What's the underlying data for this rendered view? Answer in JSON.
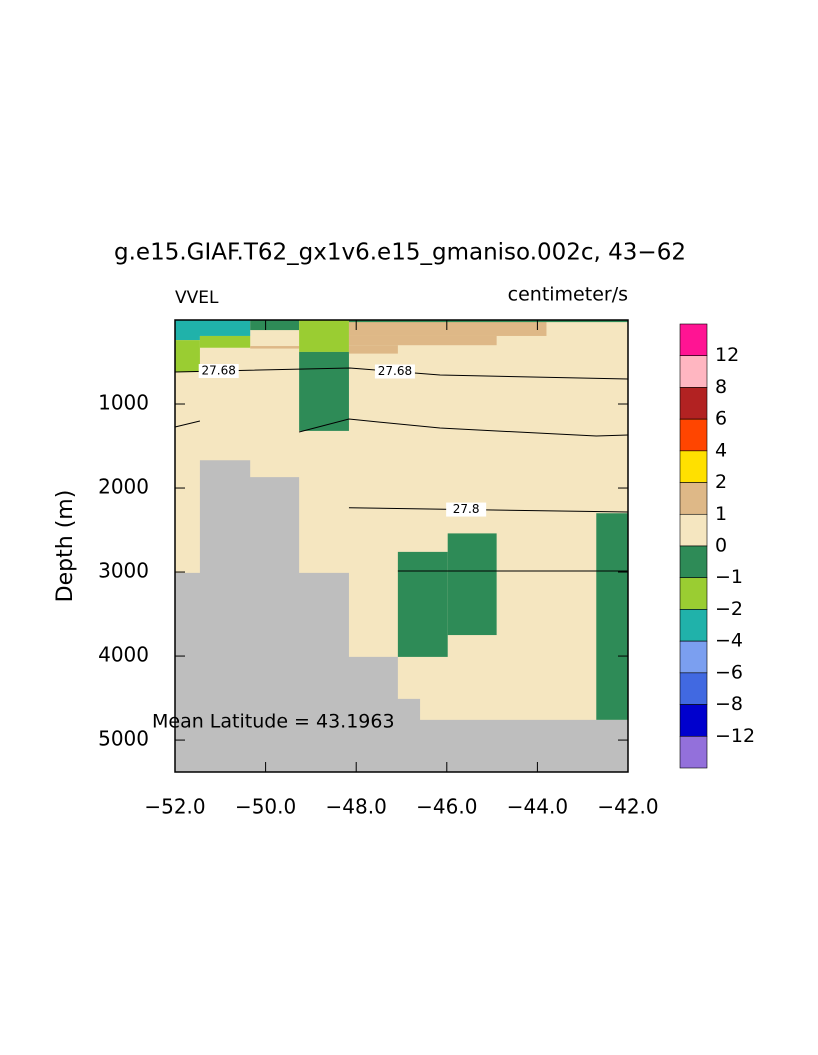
{
  "chart_data": {
    "type": "section",
    "title": "g.e15.GIAF.T62_gx1v6.e15_gmaniso.002c, 43−62",
    "left_label": "VVEL",
    "right_label": "centimeter/s",
    "y_label": "Depth (m)",
    "annotation": "Mean Latitude = 43.1963",
    "xlim": [
      -52,
      -42
    ],
    "ylim": [
      0,
      5380
    ],
    "y_reversed": true,
    "xticks": [
      {
        "value": -52,
        "label": "−52.0"
      },
      {
        "value": -50,
        "label": "−50.0"
      },
      {
        "value": -48,
        "label": "−48.0"
      },
      {
        "value": -46,
        "label": "−46.0"
      },
      {
        "value": -44,
        "label": "−44.0"
      },
      {
        "value": -42,
        "label": "−42.0"
      }
    ],
    "yticks": [
      1000,
      2000,
      3000,
      4000,
      5000
    ],
    "background": "#f5e6c0",
    "cells": [
      {
        "x": [
          -52,
          -50.34
        ],
        "y": [
          0,
          190
        ],
        "color": "#20b2aa"
      },
      {
        "x": [
          -52,
          -51.45
        ],
        "y": [
          0,
          240
        ],
        "color": "#20b2aa"
      },
      {
        "x": [
          -52,
          -51.45
        ],
        "y": [
          240,
          620
        ],
        "color": "#9acd32"
      },
      {
        "x": [
          -51.45,
          -50.34
        ],
        "y": [
          190,
          330
        ],
        "color": "#9acd32"
      },
      {
        "x": [
          -50.34,
          -49.26
        ],
        "y": [
          0,
          120
        ],
        "color": "#2e8b57"
      },
      {
        "x": [
          -50.34,
          -49.26
        ],
        "y": [
          310,
          340
        ],
        "color": "#deb887"
      },
      {
        "x": [
          -49.26,
          -48.16
        ],
        "y": [
          0,
          380
        ],
        "color": "#9acd32"
      },
      {
        "x": [
          -49.26,
          -48.16
        ],
        "y": [
          380,
          1320
        ],
        "color": "#2e8b57"
      },
      {
        "x": [
          -48.16,
          -43.8
        ],
        "y": [
          0,
          190
        ],
        "color": "#deb887"
      },
      {
        "x": [
          -48.16,
          -44.9
        ],
        "y": [
          190,
          300
        ],
        "color": "#deb887"
      },
      {
        "x": [
          -48.16,
          -47.08
        ],
        "y": [
          300,
          400
        ],
        "color": "#deb887"
      },
      {
        "x": [
          -48.16,
          -42
        ],
        "y": [
          0,
          25
        ],
        "color": "#2e8b57"
      },
      {
        "x": [
          -47.08,
          -45.98
        ],
        "y": [
          2760,
          4010
        ],
        "color": "#2e8b57"
      },
      {
        "x": [
          -45.98,
          -44.9
        ],
        "y": [
          2540,
          3750
        ],
        "color": "#2e8b57"
      },
      {
        "x": [
          -42.7,
          -42
        ],
        "y": [
          2300,
          4760
        ],
        "color": "#2e8b57"
      }
    ],
    "land": {
      "color": "#bebebe",
      "x": [
        -52,
        -51.45,
        -51.45,
        -50.34,
        -50.34,
        -49.26,
        -49.26,
        -48.16,
        -48.16,
        -47.08,
        -47.08,
        -46.59,
        -46.59,
        -42,
        -42,
        -52
      ],
      "y": [
        3010,
        3010,
        1670,
        1670,
        1870,
        1870,
        3010,
        3010,
        4010,
        4010,
        4510,
        4510,
        4760,
        4760,
        5380,
        5380
      ]
    },
    "contours": [
      {
        "label": 27.68,
        "x": [
          -52,
          -48.14,
          -46.15,
          -42
        ],
        "y": [
          619,
          571,
          655,
          702
        ]
      },
      {
        "x": [
          -52,
          -51.45,
          null,
          -49.26,
          -48.16,
          -46.15,
          -42.7,
          -42
        ],
        "y": [
          1274,
          1202,
          null,
          1333,
          1179,
          1286,
          1381,
          1369
        ]
      },
      {
        "label": 27.8,
        "x": [
          -48.16,
          -42
        ],
        "y": [
          2235,
          2286
        ]
      },
      {
        "x": [
          -47.08,
          -42
        ],
        "y": [
          2988,
          2988
        ]
      }
    ],
    "colorbar": {
      "colors": [
        "#ff1493",
        "#ffb6c1",
        "#b22222",
        "#ff4500",
        "#ffe000",
        "#deb887",
        "#f5e6c0",
        "#2e8b57",
        "#9acd32",
        "#20b2aa",
        "#7b9ff0",
        "#4169e1",
        "#0000cd",
        "#9370db"
      ],
      "levels": [
        12,
        8,
        6,
        4,
        2,
        1,
        0,
        {
          "value": -1,
          "label": "−1"
        },
        {
          "value": -2,
          "label": "−2"
        },
        {
          "value": -4,
          "label": "−4"
        },
        {
          "value": -6,
          "label": "−6"
        },
        {
          "value": -8,
          "label": "−8"
        },
        {
          "value": -12,
          "label": "−12"
        }
      ]
    }
  }
}
